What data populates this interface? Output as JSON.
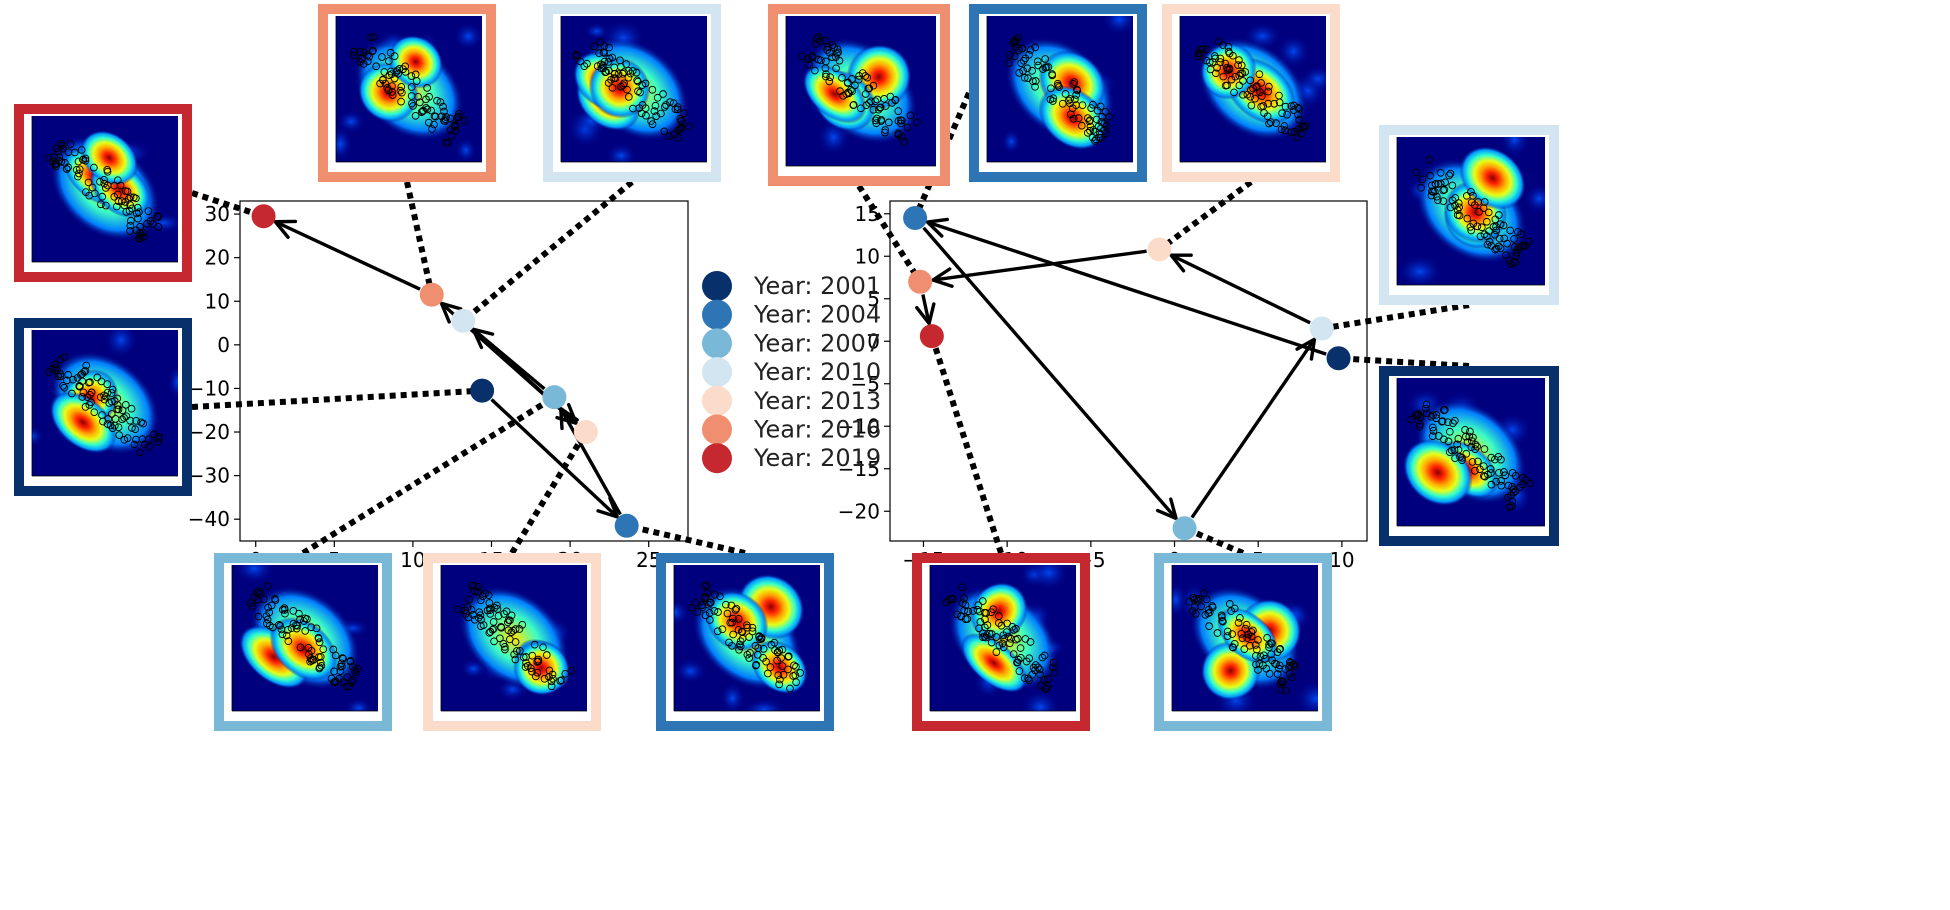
{
  "chart_data": [
    {
      "type": "scatter",
      "title": "",
      "xlabel": "",
      "ylabel": "",
      "xlim": [
        -1,
        27.5
      ],
      "ylim": [
        -45,
        33
      ],
      "xticks": [
        0,
        5,
        10,
        15,
        20,
        25
      ],
      "yticks": [
        30,
        20,
        10,
        0,
        -10,
        -20,
        -30,
        -40
      ],
      "tick_labels_x": [
        "0",
        "5",
        "10",
        "15",
        "20",
        "25"
      ],
      "tick_labels_y": [
        "30",
        "20",
        "10",
        "0",
        "−10",
        "−20",
        "−30",
        "−40"
      ],
      "points": [
        {
          "year": "2001",
          "x": 14.4,
          "y": -10.5
        },
        {
          "year": "2004",
          "x": 23.6,
          "y": -41.5
        },
        {
          "year": "2007",
          "x": 19.0,
          "y": -12.0
        },
        {
          "year": "2010",
          "x": 13.2,
          "y": 5.5
        },
        {
          "year": "2013",
          "x": 21.0,
          "y": -20.0
        },
        {
          "year": "2016",
          "x": 11.2,
          "y": 11.5
        },
        {
          "year": "2019",
          "x": 0.5,
          "y": 29.5
        }
      ],
      "trajectory": [
        "2001",
        "2004",
        "2007",
        "2010",
        "2013",
        "2016",
        "2019"
      ],
      "thumbnails": [
        {
          "year": "2019",
          "side": "left-top"
        },
        {
          "year": "2001",
          "side": "left-bottom"
        },
        {
          "year": "2016",
          "side": "top"
        },
        {
          "year": "2010",
          "side": "top"
        },
        {
          "year": "2007",
          "side": "bottom"
        },
        {
          "year": "2013",
          "side": "bottom"
        },
        {
          "year": "2004",
          "side": "bottom"
        }
      ]
    },
    {
      "type": "scatter",
      "title": "",
      "xlabel": "",
      "ylabel": "",
      "xlim": [
        -17,
        11.5
      ],
      "ylim": [
        -23.5,
        16.5
      ],
      "xticks": [
        -15,
        -10,
        -5,
        0,
        5,
        10
      ],
      "yticks": [
        15,
        10,
        5,
        0,
        -5,
        -10,
        -15,
        -20
      ],
      "tick_labels_x": [
        "−15",
        "−10",
        "−5",
        "0",
        "5",
        "10"
      ],
      "tick_labels_y": [
        "15",
        "10",
        "5",
        "0",
        "−5",
        "−10",
        "−15",
        "−20"
      ],
      "points": [
        {
          "year": "2001",
          "x": 9.8,
          "y": -2.0
        },
        {
          "year": "2004",
          "x": -15.5,
          "y": 14.5
        },
        {
          "year": "2007",
          "x": 0.6,
          "y": -22.0
        },
        {
          "year": "2010",
          "x": 8.8,
          "y": 1.5
        },
        {
          "year": "2013",
          "x": -0.9,
          "y": 10.8
        },
        {
          "year": "2016",
          "x": -15.2,
          "y": 7.0
        },
        {
          "year": "2019",
          "x": -14.5,
          "y": 0.6
        }
      ],
      "trajectory": [
        "2001",
        "2004",
        "2007",
        "2010",
        "2013",
        "2016",
        "2019"
      ],
      "thumbnails": [
        {
          "year": "2016",
          "side": "top"
        },
        {
          "year": "2004",
          "side": "top"
        },
        {
          "year": "2013",
          "side": "top"
        },
        {
          "year": "2010",
          "side": "right-top"
        },
        {
          "year": "2001",
          "side": "right-bottom"
        },
        {
          "year": "2019",
          "side": "bottom"
        },
        {
          "year": "2007",
          "side": "bottom"
        }
      ]
    }
  ],
  "legend": {
    "entries": [
      {
        "label": "Year: 2001",
        "year": "2001",
        "color": "#08306b"
      },
      {
        "label": "Year: 2004",
        "year": "2004",
        "color": "#2e75b6"
      },
      {
        "label": "Year: 2007",
        "year": "2007",
        "color": "#79b8d6"
      },
      {
        "label": "Year: 2010",
        "year": "2010",
        "color": "#d2e5f0"
      },
      {
        "label": "Year: 2013",
        "year": "2013",
        "color": "#fbdcca"
      },
      {
        "label": "Year: 2016",
        "year": "2016",
        "color": "#ef8f6f"
      },
      {
        "label": "Year: 2019",
        "year": "2019",
        "color": "#c5282f"
      }
    ]
  },
  "thumbnail_colormap": "jet",
  "thumbnail_background": "#00007f"
}
